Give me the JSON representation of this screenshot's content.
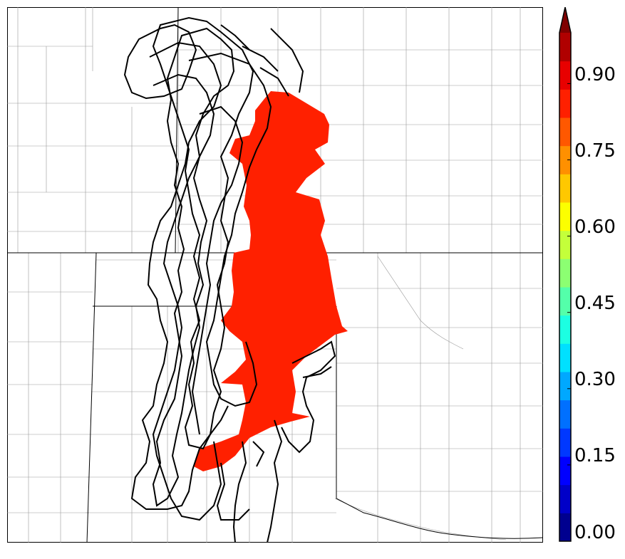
{
  "colorbar": {
    "ticks": [
      "0.00",
      "0.15",
      "0.30",
      "0.45",
      "0.60",
      "0.75",
      "0.90"
    ],
    "tick_values": [
      0.0,
      0.15,
      0.3,
      0.45,
      0.6,
      0.75,
      0.9
    ],
    "min": 0.0,
    "max": 1.0,
    "extend": "max",
    "colors": [
      "#00008f",
      "#0000c8",
      "#0000ff",
      "#0038ff",
      "#0070ff",
      "#00a8ff",
      "#00e0ff",
      "#1cffe2",
      "#54ffaa",
      "#8cff72",
      "#c4ff3a",
      "#fcff00",
      "#ffc800",
      "#ff9000",
      "#ff5800",
      "#ff2000",
      "#e80000",
      "#b00000",
      "#800000"
    ]
  },
  "map": {
    "filled_region_color": "#ff2000",
    "filled_region_value": 0.85,
    "member_contour_color": "#000000"
  }
}
